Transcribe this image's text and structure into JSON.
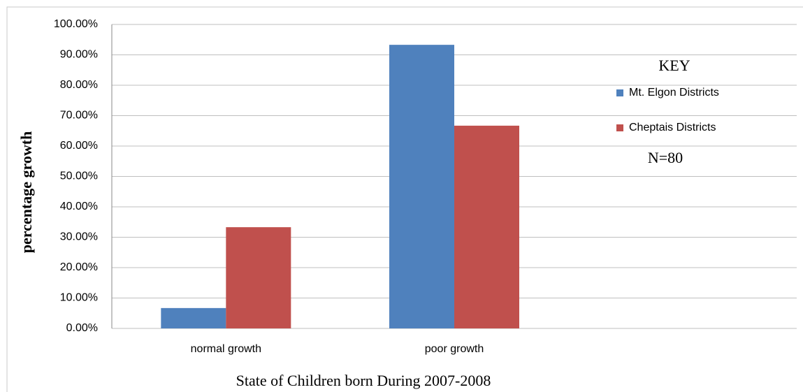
{
  "chart_data": {
    "type": "bar",
    "x_label": "State of Children   born During  2007-2008",
    "y_label": "percentage growth",
    "legend_title": "KEY",
    "annotation": "N=80",
    "categories": [
      "normal growth",
      "poor growth",
      null
    ],
    "series": [
      {
        "name": "Mt. Elgon Districts",
        "color": "#4f81bd",
        "values": [
          6.7,
          93.3,
          null
        ]
      },
      {
        "name": "Cheptais Districts",
        "color": "#c0504d",
        "values": [
          33.3,
          66.7,
          null
        ]
      }
    ],
    "ylim": [
      0,
      100
    ],
    "yticks": [
      {
        "value": 0,
        "label": "0.00%"
      },
      {
        "value": 10,
        "label": "10.00%"
      },
      {
        "value": 20,
        "label": "20.00%"
      },
      {
        "value": 30,
        "label": "30.00%"
      },
      {
        "value": 40,
        "label": "40.00%"
      },
      {
        "value": 50,
        "label": "50.00%"
      },
      {
        "value": 60,
        "label": "60.00%"
      },
      {
        "value": 70,
        "label": "70.00%"
      },
      {
        "value": 80,
        "label": "80.00%"
      },
      {
        "value": 90,
        "label": "90.00%"
      },
      {
        "value": 100,
        "label": "100.00%"
      }
    ],
    "grid": true,
    "legend_position": "right"
  }
}
